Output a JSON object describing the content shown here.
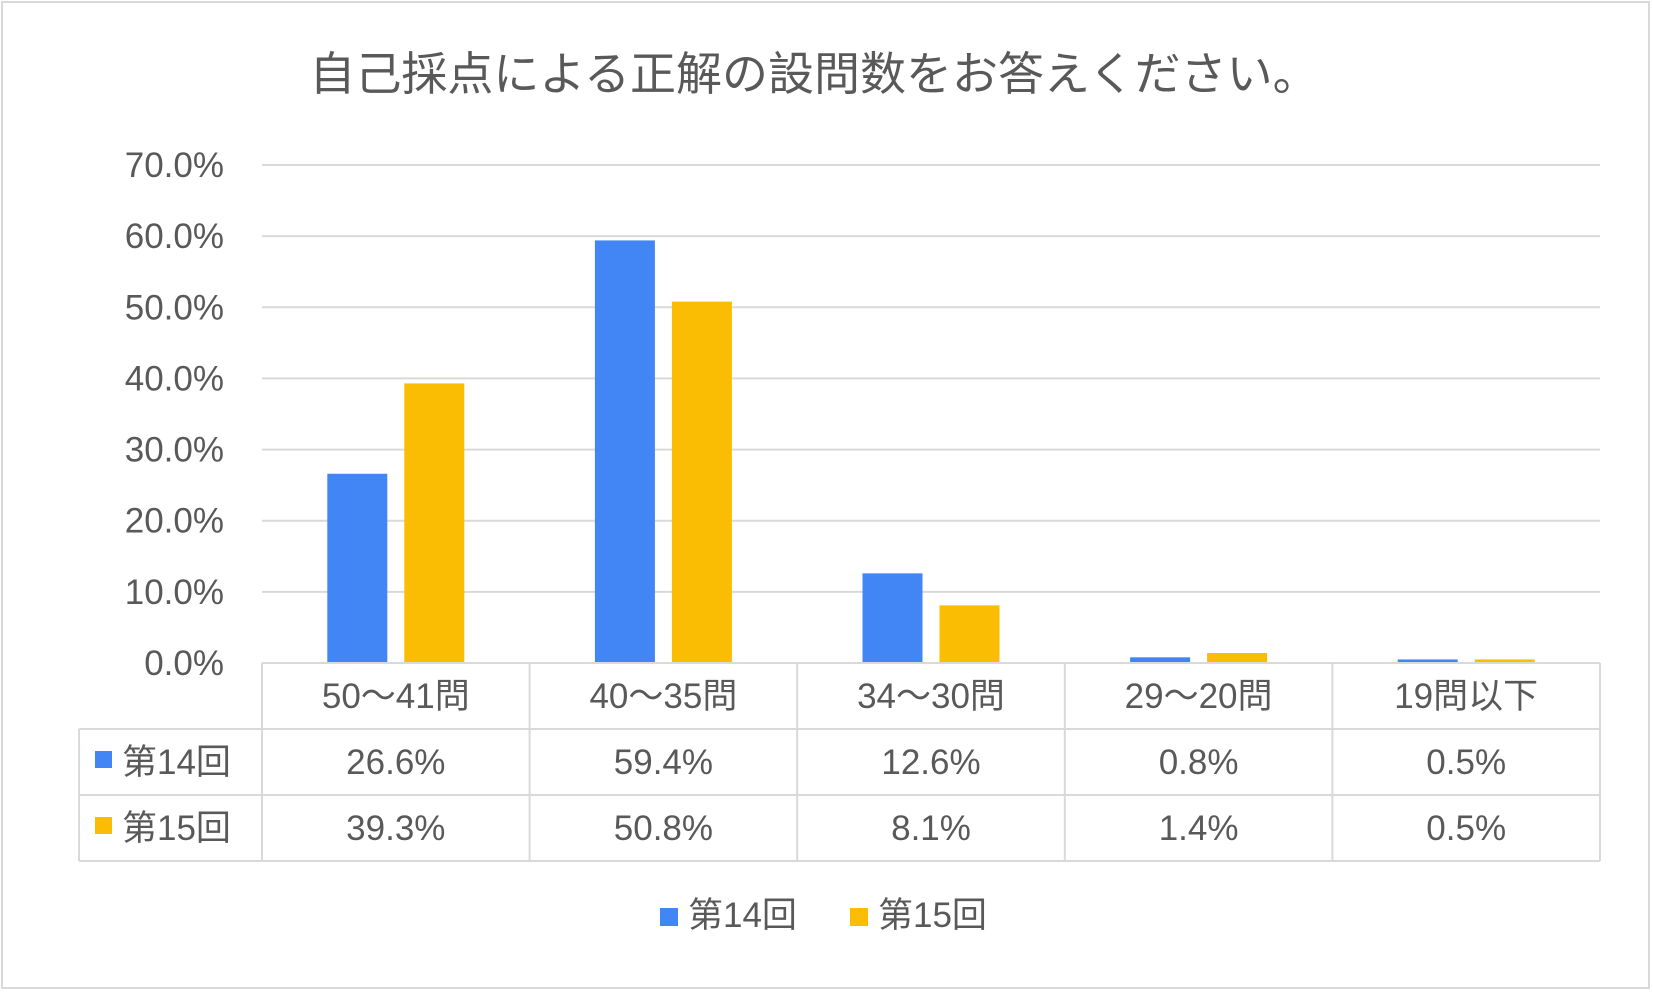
{
  "chart_data": {
    "type": "bar",
    "title": "自己採点による正解の設問数をお答えください。",
    "categories": [
      "50～41問",
      "40～35問",
      "34～30問",
      "29～20問",
      "19問以下"
    ],
    "series": [
      {
        "name": "第14回",
        "color": "#4285f4",
        "values": [
          26.6,
          59.4,
          12.6,
          0.8,
          0.5
        ],
        "labels": [
          "26.6%",
          "59.4%",
          "12.6%",
          "0.8%",
          "0.5%"
        ]
      },
      {
        "name": "第15回",
        "color": "#fbbc04",
        "values": [
          39.3,
          50.8,
          8.1,
          1.4,
          0.5
        ],
        "labels": [
          "39.3%",
          "50.8%",
          "8.1%",
          "1.4%",
          "0.5%"
        ]
      }
    ],
    "yticks": [
      "0.0%",
      "10.0%",
      "20.0%",
      "30.0%",
      "40.0%",
      "50.0%",
      "60.0%",
      "70.0%"
    ],
    "ylim": [
      0,
      70
    ],
    "grid": true,
    "legend": "bottom",
    "data_table": true
  }
}
